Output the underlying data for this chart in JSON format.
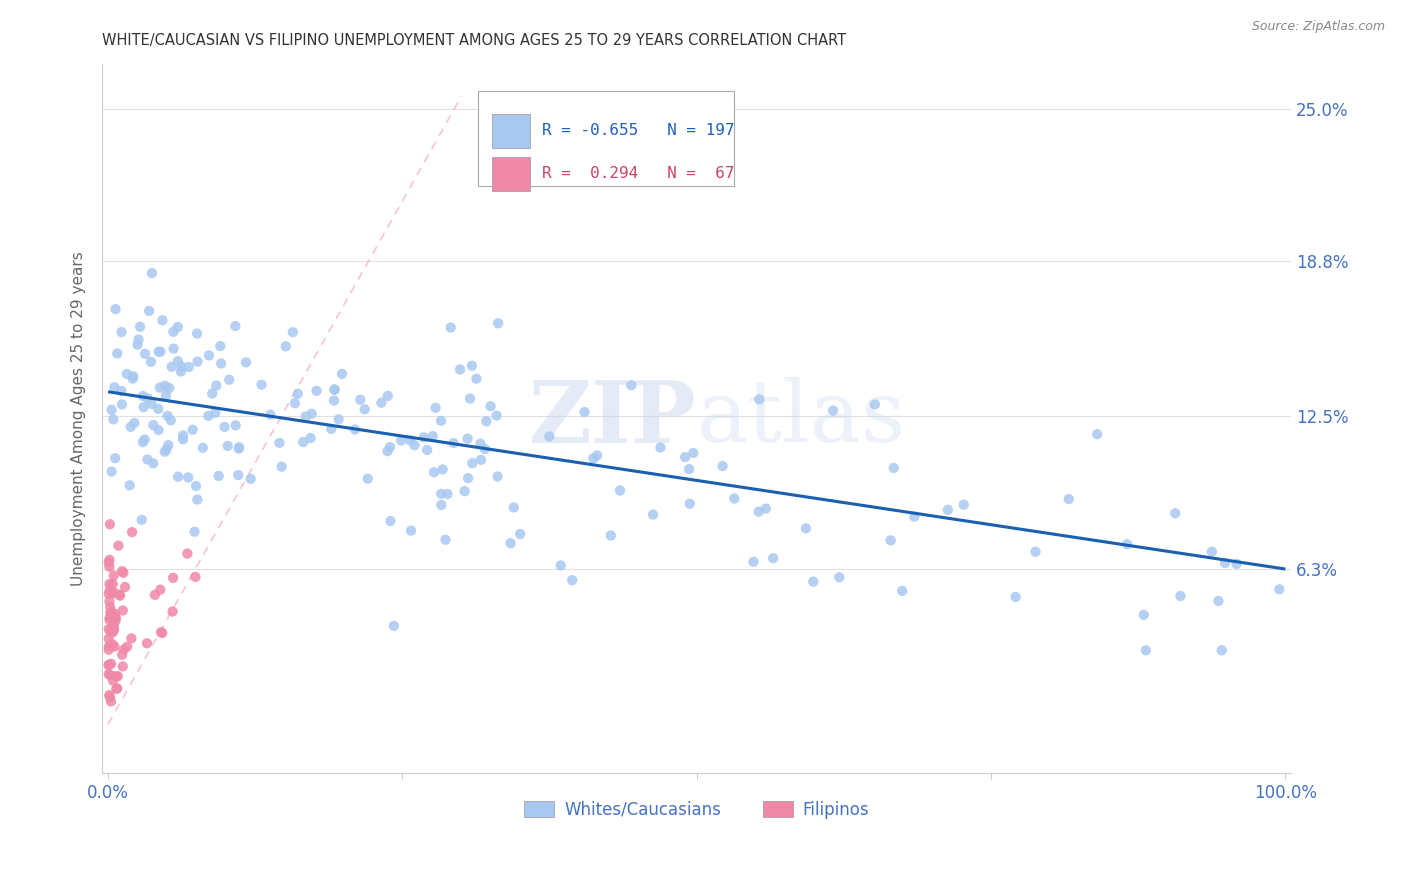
{
  "title": "WHITE/CAUCASIAN VS FILIPINO UNEMPLOYMENT AMONG AGES 25 TO 29 YEARS CORRELATION CHART",
  "source": "Source: ZipAtlas.com",
  "ylabel_label": "Unemployment Among Ages 25 to 29 years",
  "ytick_labels": [
    "6.3%",
    "12.5%",
    "18.8%",
    "25.0%"
  ],
  "ytick_values": [
    0.063,
    0.125,
    0.188,
    0.25
  ],
  "xlim": [
    -0.005,
    1.005
  ],
  "ylim": [
    -0.02,
    0.268
  ],
  "legend_R": [
    "-0.655",
    " 0.294"
  ],
  "legend_N": [
    "197",
    " 67"
  ],
  "blue_color": "#a8c8f0",
  "pink_color": "#f088a8",
  "trendline_blue_y0": 0.135,
  "trendline_blue_y1": 0.063,
  "trendline_pink_x0": 0.0,
  "trendline_pink_y0": 0.0,
  "trendline_pink_x1": 0.3,
  "trendline_pink_y1": 0.255,
  "background_color": "#ffffff",
  "grid_color": "#e0e0e0",
  "axis_tick_color": "#4472c4",
  "title_color": "#333333",
  "source_color": "#888888",
  "ylabel_color": "#666666",
  "watermark_color": "#ccd8ee",
  "legend_box_color": "#aaaaaa",
  "legend_text_blue": "#2060c0",
  "legend_text_pink": "#cc4466"
}
